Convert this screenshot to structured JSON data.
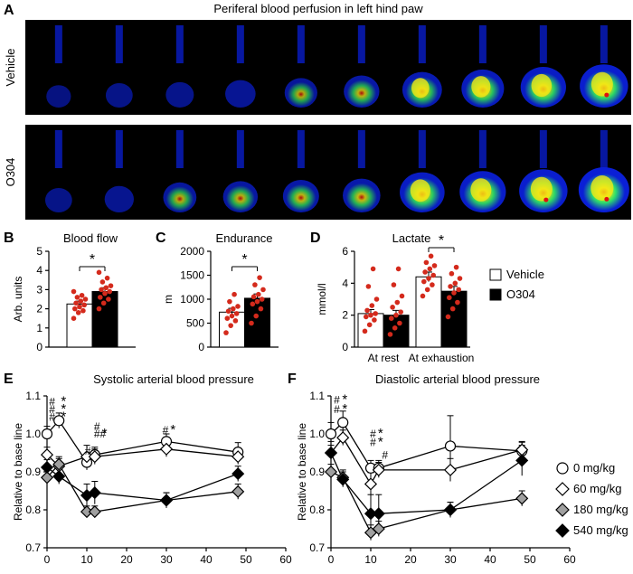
{
  "figure": {
    "panelA": {
      "letter": "A",
      "title": "Periferal blood perfusion in left hind paw",
      "rows": [
        {
          "label": "Vehicle",
          "frames": [
            0.1,
            0.18,
            0.22,
            0.3,
            0.38,
            0.48,
            0.62,
            0.72,
            0.82,
            0.92
          ]
        },
        {
          "label": "O304",
          "frames": [
            0.18,
            0.26,
            0.4,
            0.45,
            0.5,
            0.55,
            0.8,
            0.85,
            0.92,
            1.0
          ]
        }
      ],
      "colors": {
        "background": "#000000",
        "low": "#0a1fd6",
        "mid": "#2ee06a",
        "high": "#f2e817",
        "peak": "#e01010"
      }
    },
    "legend_bar": [
      {
        "label": "Vehicle",
        "color": "#ffffff"
      },
      {
        "label": "O304",
        "color": "#000000"
      }
    ],
    "legend_line": [
      {
        "label": "0 mg/kg",
        "marker": "circle",
        "color": "#ffffff"
      },
      {
        "label": "60 mg/kg",
        "marker": "diamond",
        "color": "#ffffff"
      },
      {
        "label": "180 mg/kg",
        "marker": "diamond",
        "color": "#a0a0a0"
      },
      {
        "label": "540 mg/kg",
        "marker": "diamond",
        "color": "#000000"
      }
    ]
  },
  "chart_data": [
    {
      "panel": "B",
      "type": "bar",
      "title": "Blood flow",
      "ylabel": "Arb. units",
      "ylim": [
        0,
        5
      ],
      "yticks": [
        0,
        1,
        2,
        3,
        4,
        5
      ],
      "categories": [
        ""
      ],
      "series": [
        {
          "name": "Vehicle",
          "values": [
            2.25
          ],
          "errors": [
            0.15
          ],
          "points": [
            [
              1.5,
              1.8,
              1.9,
              2.0,
              2.1,
              2.2,
              2.3,
              2.4,
              2.5,
              2.6,
              2.7,
              2.9
            ]
          ]
        },
        {
          "name": "O304",
          "values": [
            2.9
          ],
          "errors": [
            0.2
          ],
          "points": [
            [
              2.0,
              2.3,
              2.5,
              2.6,
              2.8,
              2.9,
              3.0,
              3.1,
              3.2,
              3.4,
              3.6,
              3.9
            ]
          ]
        }
      ],
      "significance": "*"
    },
    {
      "panel": "C",
      "type": "bar",
      "title": "Endurance",
      "ylabel": "m",
      "ylim": [
        0,
        2000
      ],
      "yticks": [
        0,
        500,
        1000,
        1500,
        2000
      ],
      "categories": [
        ""
      ],
      "series": [
        {
          "name": "Vehicle",
          "values": [
            730
          ],
          "errors": [
            80
          ],
          "points": [
            [
              300,
              450,
              550,
              600,
              650,
              700,
              750,
              800,
              850,
              950,
              1100
            ]
          ]
        },
        {
          "name": "O304",
          "values": [
            1020
          ],
          "errors": [
            90
          ],
          "points": [
            [
              500,
              650,
              800,
              900,
              950,
              1000,
              1050,
              1100,
              1200,
              1300,
              1450
            ]
          ]
        }
      ],
      "significance": "*"
    },
    {
      "panel": "D",
      "type": "bar",
      "title": "Lactate",
      "ylabel": "mmol/l",
      "ylim": [
        0,
        6
      ],
      "yticks": [
        0,
        2,
        4,
        6
      ],
      "categories": [
        "At rest",
        "At exhaustion"
      ],
      "series": [
        {
          "name": "Vehicle",
          "values": [
            2.1,
            4.4
          ],
          "errors": [
            0.25,
            0.3
          ],
          "points": [
            [
              1.0,
              1.4,
              1.7,
              1.9,
              2.0,
              2.1,
              2.3,
              2.6,
              3.0,
              3.8,
              4.9
            ],
            [
              3.2,
              3.6,
              3.9,
              4.1,
              4.3,
              4.5,
              4.7,
              4.9,
              5.1,
              5.3,
              5.7
            ]
          ]
        },
        {
          "name": "O304",
          "values": [
            2.0,
            3.5
          ],
          "errors": [
            0.3,
            0.3
          ],
          "points": [
            [
              0.8,
              1.2,
              1.5,
              1.8,
              2.0,
              2.2,
              2.5,
              2.8,
              3.2,
              3.9,
              4.9
            ],
            [
              1.9,
              2.4,
              2.8,
              3.1,
              3.4,
              3.6,
              3.8,
              4.0,
              4.3,
              4.6,
              5.0
            ]
          ]
        }
      ],
      "significance": "*"
    },
    {
      "panel": "E",
      "type": "line",
      "title": "Systolic arterial blood pressure",
      "xlabel": "",
      "ylabel": "Relative to base line",
      "xlim": [
        0,
        60
      ],
      "ylim": [
        0.7,
        1.1
      ],
      "xticks": [
        0,
        10,
        20,
        30,
        40,
        50,
        60
      ],
      "yticks": [
        0.7,
        0.8,
        0.9,
        1.0,
        1.1
      ],
      "series": [
        {
          "name": "0 mg/kg",
          "x": [
            0,
            3,
            10,
            12,
            30,
            48
          ],
          "y": [
            1.0,
            1.035,
            0.925,
            0.945,
            0.98,
            0.952
          ],
          "err": [
            0.02,
            0.02,
            0.02,
            0.02,
            0.02,
            0.025
          ]
        },
        {
          "name": "60 mg/kg",
          "x": [
            0,
            3,
            10,
            12,
            30,
            48
          ],
          "y": [
            0.945,
            0.915,
            0.94,
            0.94,
            0.96,
            0.94
          ],
          "err": [
            0.02,
            0.02,
            0.03,
            0.02,
            0.02,
            0.02
          ]
        },
        {
          "name": "180 mg/kg",
          "x": [
            0,
            3,
            10,
            12,
            30,
            48
          ],
          "y": [
            0.885,
            0.92,
            0.795,
            0.795,
            0.825,
            0.848
          ],
          "err": [
            0.02,
            0.02,
            0.015,
            0.015,
            0.02,
            0.02
          ]
        },
        {
          "name": "540 mg/kg",
          "x": [
            0,
            3,
            10,
            12,
            30,
            48
          ],
          "y": [
            0.912,
            0.888,
            0.838,
            0.845,
            0.825,
            0.895
          ],
          "err": [
            0.02,
            0.02,
            0.03,
            0.03,
            0.02,
            0.02
          ]
        }
      ],
      "annotations": [
        {
          "x": 0.5,
          "y": 1.075,
          "text": "#"
        },
        {
          "x": 0.5,
          "y": 1.055,
          "text": "#"
        },
        {
          "x": 0.5,
          "y": 1.035,
          "text": "#"
        },
        {
          "x": 3.5,
          "y": 1.075,
          "text": "*"
        },
        {
          "x": 3.5,
          "y": 1.055,
          "text": "*"
        },
        {
          "x": 3.5,
          "y": 1.035,
          "text": "*"
        },
        {
          "x": 9.5,
          "y": 0.945,
          "text": "#"
        },
        {
          "x": 11.8,
          "y": 1.01,
          "text": "#"
        },
        {
          "x": 11.8,
          "y": 0.99,
          "text": "##"
        },
        {
          "x": 13.8,
          "y": 0.99,
          "text": "*"
        },
        {
          "x": 29.0,
          "y": 1.0,
          "text": "#"
        },
        {
          "x": 31.0,
          "y": 1.0,
          "text": "*"
        }
      ]
    },
    {
      "panel": "F",
      "type": "line",
      "title": "Diastolic arterial blood pressure",
      "xlabel": "",
      "ylabel": "Relative to base line",
      "xlim": [
        0,
        60
      ],
      "ylim": [
        0.7,
        1.1
      ],
      "xticks": [
        0,
        10,
        20,
        30,
        40,
        50,
        60
      ],
      "yticks": [
        0.7,
        0.8,
        0.9,
        1.0,
        1.1
      ],
      "series": [
        {
          "name": "0 mg/kg",
          "x": [
            0,
            3,
            10,
            12,
            30,
            48
          ],
          "y": [
            1.0,
            1.03,
            0.91,
            0.91,
            0.968,
            0.955
          ],
          "err": [
            0.03,
            0.03,
            0.02,
            0.02,
            0.08,
            0.025
          ]
        },
        {
          "name": "60 mg/kg",
          "x": [
            0,
            3,
            10,
            12,
            30,
            48
          ],
          "y": [
            0.95,
            0.99,
            0.868,
            0.905,
            0.905,
            0.958
          ],
          "err": [
            0.03,
            0.02,
            0.03,
            0.02,
            0.03,
            0.02
          ]
        },
        {
          "name": "180 mg/kg",
          "x": [
            0,
            3,
            10,
            12,
            30,
            48
          ],
          "y": [
            0.9,
            0.885,
            0.74,
            0.75,
            0.8,
            0.83
          ],
          "err": [
            0.02,
            0.02,
            0.02,
            0.02,
            0.02,
            0.02
          ]
        },
        {
          "name": "540 mg/kg",
          "x": [
            0,
            3,
            10,
            12,
            30,
            48
          ],
          "y": [
            0.95,
            0.88,
            0.79,
            0.79,
            0.8,
            0.93
          ],
          "err": [
            0.02,
            0.02,
            0.05,
            0.05,
            0.02,
            0.04
          ]
        }
      ],
      "annotations": [
        {
          "x": 0.7,
          "y": 1.08,
          "text": "#"
        },
        {
          "x": 2.8,
          "y": 1.08,
          "text": "*"
        },
        {
          "x": 0.7,
          "y": 1.055,
          "text": "#"
        },
        {
          "x": 2.8,
          "y": 1.055,
          "text": "*"
        },
        {
          "x": 9.8,
          "y": 0.99,
          "text": "#"
        },
        {
          "x": 11.8,
          "y": 0.99,
          "text": "*"
        },
        {
          "x": 9.8,
          "y": 0.968,
          "text": "#"
        },
        {
          "x": 11.8,
          "y": 0.968,
          "text": "*"
        },
        {
          "x": 12.8,
          "y": 0.935,
          "text": "#"
        }
      ]
    }
  ]
}
